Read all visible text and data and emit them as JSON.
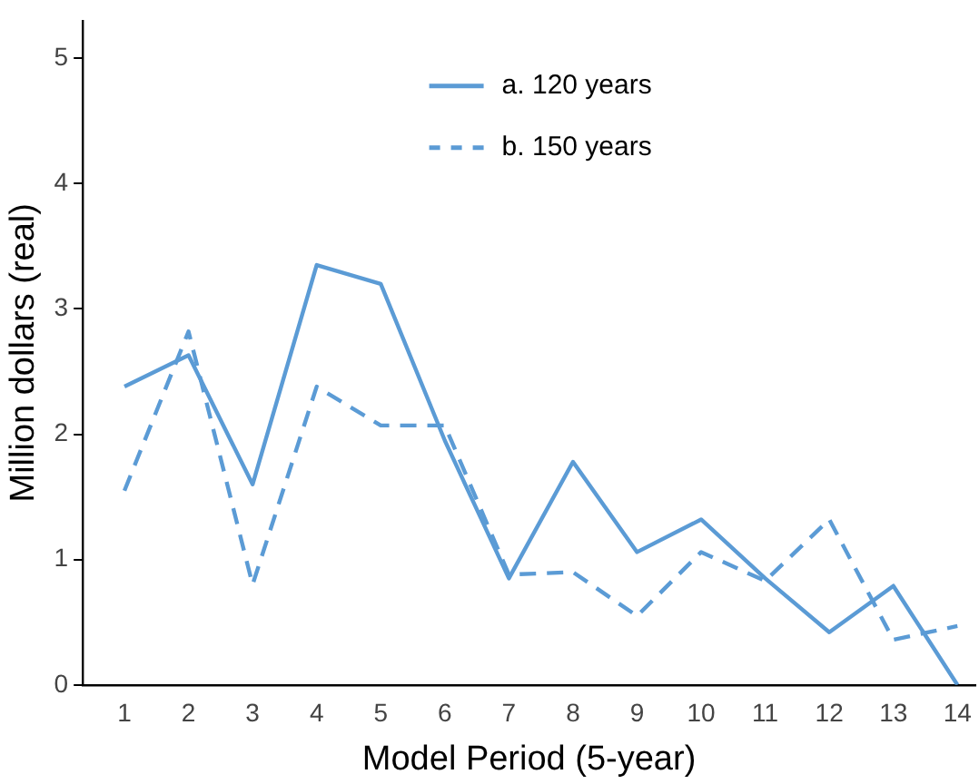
{
  "chart_data": {
    "type": "line",
    "xlabel": "Model Period (5-year)",
    "ylabel": "Million dollars (real)",
    "x": [
      1,
      2,
      3,
      4,
      5,
      6,
      7,
      8,
      9,
      10,
      11,
      12,
      13,
      14
    ],
    "xlim": [
      0.35,
      14.28
    ],
    "xticks": [
      1,
      2,
      3,
      4,
      5,
      6,
      7,
      8,
      9,
      10,
      11,
      12,
      13,
      14
    ],
    "ylim": [
      0,
      5.3
    ],
    "yticks": [
      0,
      1,
      2,
      3,
      4,
      5
    ],
    "grid": false,
    "legend": "top",
    "marker": "none",
    "series": [
      {
        "name": "a. 120 years",
        "color": "#5b9bd5",
        "line_style": "solid",
        "values": [
          2.38,
          2.63,
          1.6,
          3.35,
          3.2,
          1.95,
          0.85,
          1.78,
          1.06,
          1.32,
          0.85,
          0.42,
          0.79,
          0
        ]
      },
      {
        "name": "b. 150 years",
        "color": "#5b9bd5",
        "line_style": "dashed",
        "values": [
          1.55,
          2.82,
          0.8,
          2.38,
          2.07,
          2.07,
          0.88,
          0.9,
          0.55,
          1.06,
          0.83,
          1.32,
          0.36,
          0.47
        ]
      }
    ]
  }
}
